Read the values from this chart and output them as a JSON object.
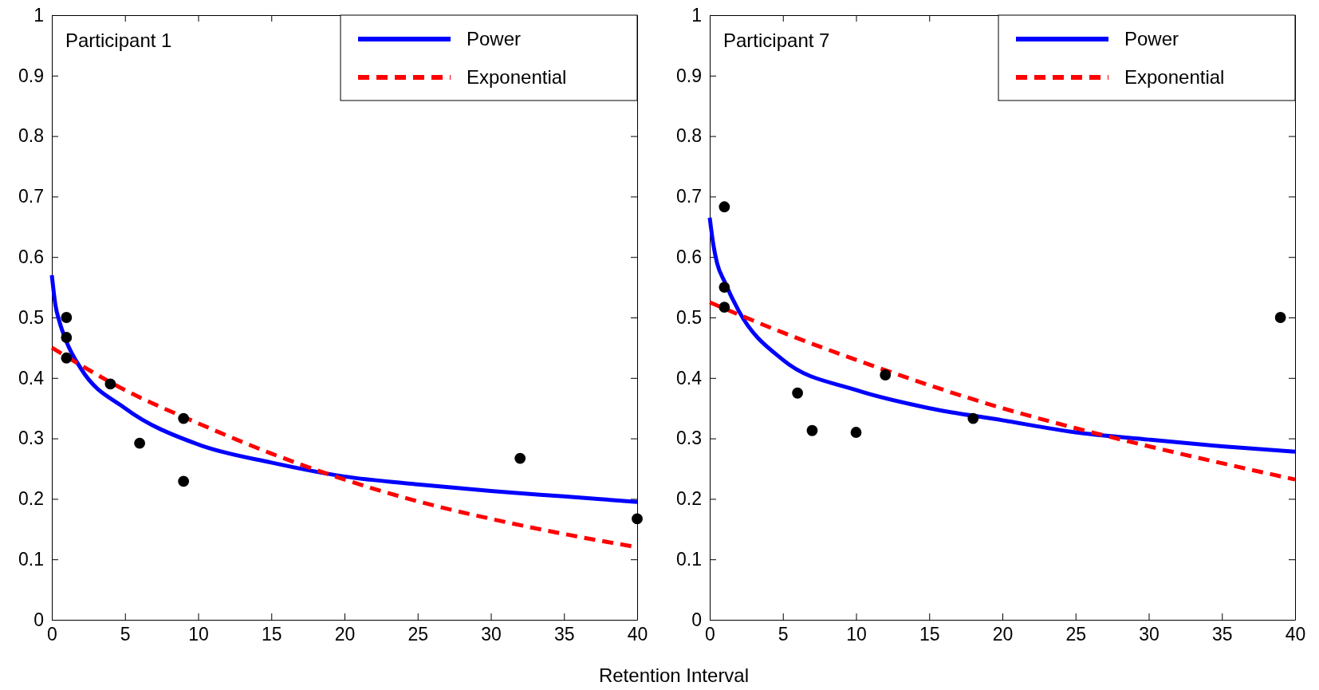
{
  "chart_data": [
    {
      "type": "line",
      "title": "Participant 1",
      "xlabel": "Retention Interval",
      "xlim": [
        0,
        40
      ],
      "xticks": [
        0,
        5,
        10,
        15,
        20,
        25,
        30,
        35,
        40
      ],
      "ylim": [
        0,
        1
      ],
      "yticks": [
        0,
        0.1,
        0.2,
        0.3,
        0.4,
        0.5,
        0.6,
        0.7,
        0.8,
        0.9,
        1
      ],
      "grid": false,
      "legend": "top right",
      "series": [
        {
          "name": "Power",
          "color": "#0000ff",
          "line_style": "solid",
          "x": [
            0,
            0.25,
            0.5,
            1,
            2,
            5,
            10,
            15,
            20,
            25,
            30,
            35,
            40
          ],
          "values": [
            0.57,
            0.52,
            0.495,
            0.46,
            0.415,
            0.35,
            0.29,
            0.26,
            0.237,
            0.224,
            0.213,
            0.204,
            0.195
          ]
        },
        {
          "name": "Exponential",
          "color": "#ff0000",
          "line_style": "dashed",
          "x": [
            0,
            5,
            10,
            15,
            20,
            25,
            30,
            35,
            40
          ],
          "values": [
            0.45,
            0.38,
            0.325,
            0.275,
            0.232,
            0.196,
            0.167,
            0.142,
            0.12
          ]
        },
        {
          "type": "scatter",
          "color": "#000000",
          "marker": "circle",
          "x": [
            1,
            1,
            1,
            4,
            6,
            9,
            9,
            32,
            40
          ],
          "values": [
            0.5,
            0.467,
            0.433,
            0.39,
            0.292,
            0.333,
            0.229,
            0.267,
            0.167
          ]
        }
      ]
    },
    {
      "type": "line",
      "title": "Participant 7",
      "xlim": [
        0,
        40
      ],
      "xticks": [
        0,
        5,
        10,
        15,
        20,
        25,
        30,
        35,
        40
      ],
      "ylim": [
        0,
        1
      ],
      "yticks": [
        0,
        0.1,
        0.2,
        0.3,
        0.4,
        0.5,
        0.6,
        0.7,
        0.8,
        0.9,
        1
      ],
      "grid": false,
      "legend": "top right",
      "series": [
        {
          "name": "Power",
          "color": "#0000ff",
          "line_style": "solid",
          "x": [
            0,
            0.25,
            0.5,
            1,
            2,
            5,
            10,
            15,
            20,
            25,
            30,
            35,
            40
          ],
          "values": [
            0.665,
            0.62,
            0.59,
            0.56,
            0.51,
            0.43,
            0.38,
            0.35,
            0.33,
            0.31,
            0.298,
            0.287,
            0.278
          ]
        },
        {
          "name": "Exponential",
          "color": "#ff0000",
          "line_style": "dashed",
          "x": [
            0,
            5,
            10,
            15,
            20,
            25,
            30,
            35,
            40
          ],
          "values": [
            0.525,
            0.475,
            0.43,
            0.388,
            0.35,
            0.317,
            0.287,
            0.259,
            0.232
          ]
        },
        {
          "type": "scatter",
          "color": "#000000",
          "marker": "circle",
          "x": [
            1,
            1,
            1,
            6,
            7,
            10,
            12,
            18,
            39
          ],
          "values": [
            0.683,
            0.55,
            0.517,
            0.375,
            0.313,
            0.31,
            0.405,
            0.333,
            0.5
          ]
        }
      ]
    }
  ]
}
